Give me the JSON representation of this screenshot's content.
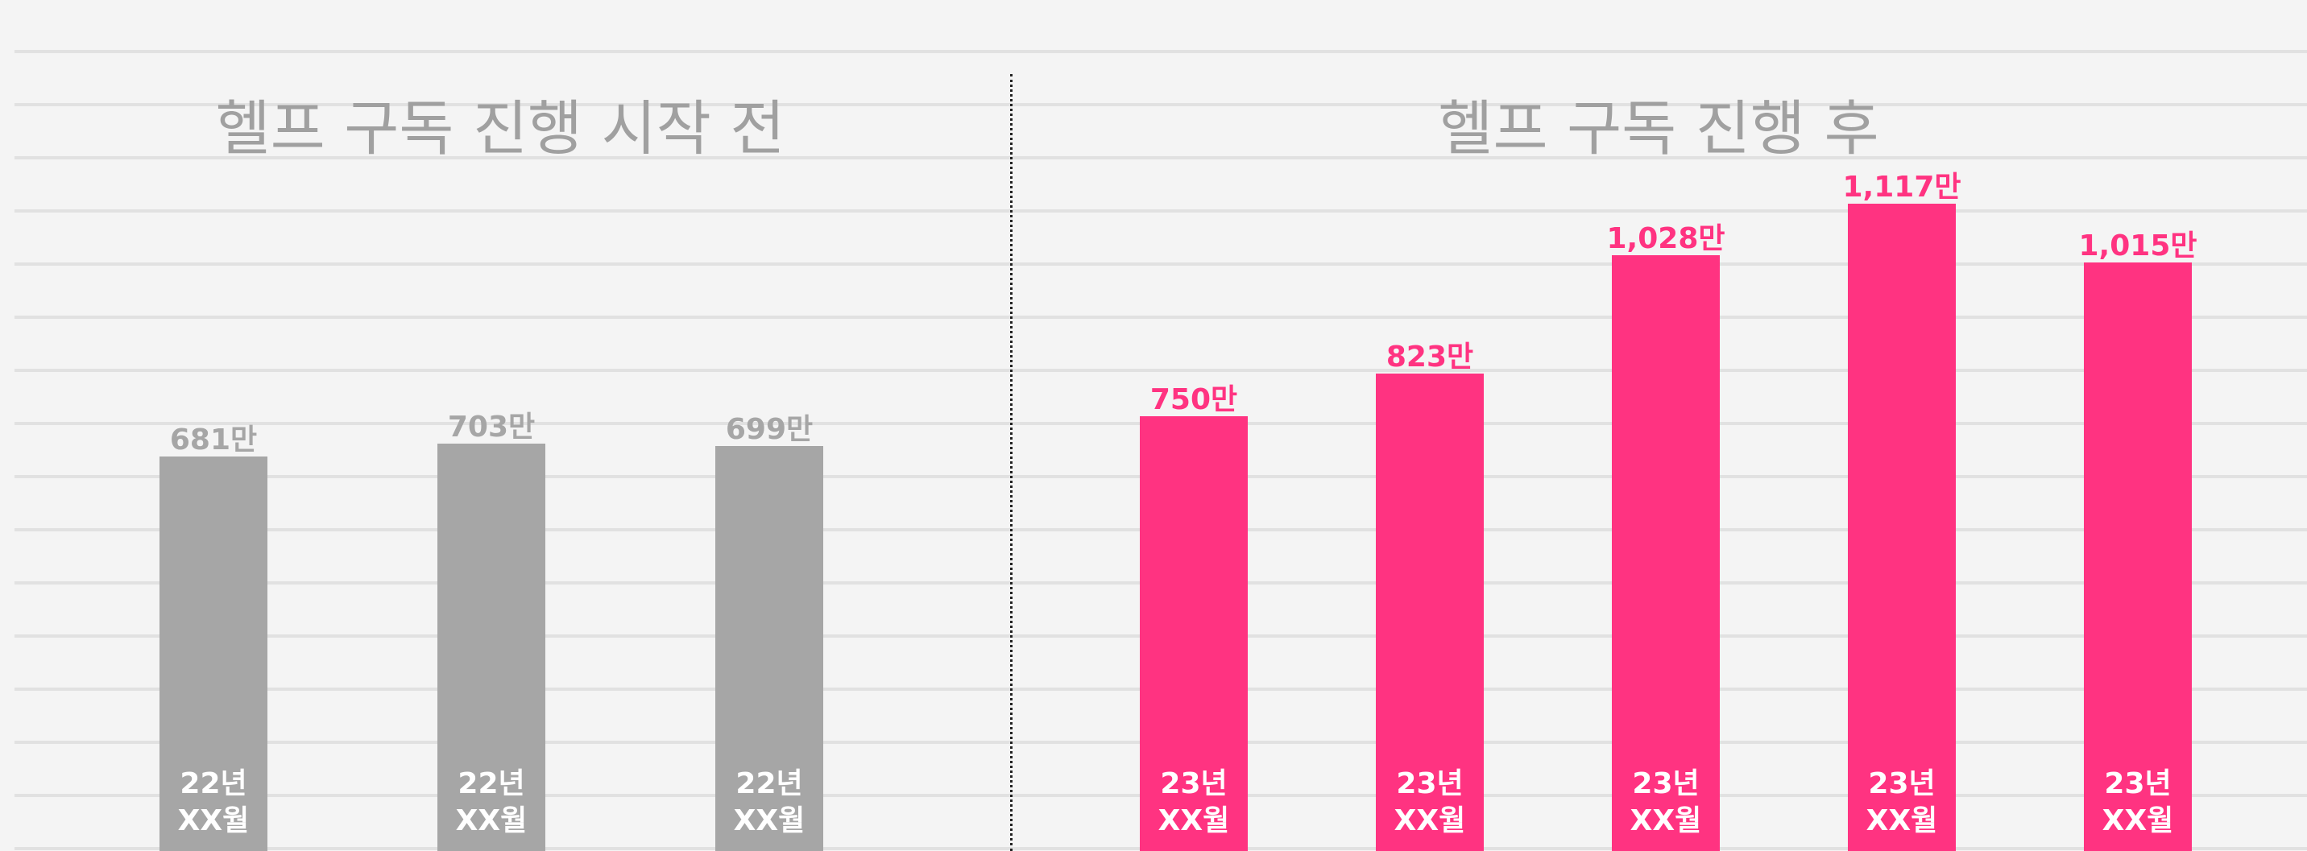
{
  "chart_data": [
    {
      "type": "bar",
      "title": "헬프 구독 진행 시작 전",
      "categories": [
        "22년\nXX월",
        "22년\nXX월",
        "22년\nXX월"
      ],
      "values": [
        681,
        703,
        699
      ],
      "value_labels": [
        "681만",
        "703만",
        "699만"
      ],
      "color": "#a6a6a6"
    },
    {
      "type": "bar",
      "title": "헬프 구독 진행 후",
      "categories": [
        "23년\nXX월",
        "23년\nXX월",
        "23년\nXX월",
        "23년\nXX월",
        "23년\nXX월"
      ],
      "values": [
        750,
        823,
        1028,
        1117,
        1015
      ],
      "value_labels": [
        "750만",
        "823만",
        "1,028만",
        "1,117만",
        "1,015만"
      ],
      "color": "#ff3381"
    }
  ]
}
